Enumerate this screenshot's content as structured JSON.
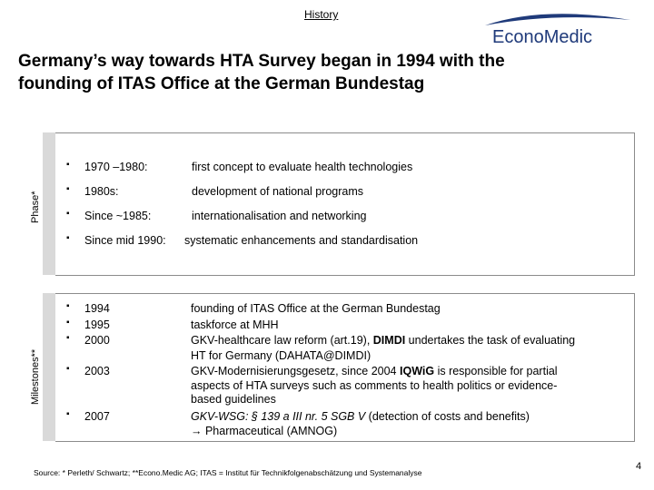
{
  "header": {
    "section": "History",
    "logo_text": "EconoMedic"
  },
  "title": {
    "line1": "Germany’s way towards HTA Survey began in 1994 with the",
    "line2": "founding of ITAS Office at the German Bundestag"
  },
  "phase": {
    "label": "Phase*",
    "items": [
      {
        "period": "1970 –1980:",
        "text": "first  concept to evaluate health technologies"
      },
      {
        "period": "1980s:",
        "text": "development of national programs"
      },
      {
        "period": "Since ~1985:",
        "text": "internationalisation and  networking"
      },
      {
        "period": "Since mid 1990:",
        "text": "systematic enhancements and standardisation"
      }
    ]
  },
  "milestones": {
    "label": "Milestones**",
    "years": [
      "1994",
      "1995",
      "2000",
      "2003",
      "2007"
    ],
    "bullet": "▪",
    "lines": {
      "l1": "founding of ITAS Office at the German Bundestag",
      "l2": "taskforce at MHH",
      "l3a": "GKV-healthcare law reform (art.19), ",
      "l3b": "DIMDI",
      "l3c": " undertakes the task of evaluating",
      "l4": "HT for Germany (DAHATA@DIMDI)",
      "l5a": "GKV-Modernisierungsgesetz, since 2004 ",
      "l5b": "IQWiG",
      "l5c": " is responsible for partial",
      "l6": "aspects of HTA surveys such as comments to health politics or evidence-",
      "l7": "based guidelines",
      "l8a": "GKV-WSG: § 139 a III nr. 5 SGB V",
      "l8b": " (detection of costs and benefits)",
      "l9": "→ Pharmaceutical (AMNOG)"
    }
  },
  "footer": {
    "source": "Source: * Perleth/ Schwartz; **Econo.Medic AG;  ITAS =  Institut für Technikfolgenabschätzung und Systemanalyse",
    "page": "4"
  },
  "colors": {
    "logo_blue": "#1f3a7a",
    "bar_gray": "#d9d9d9",
    "border_gray": "#8b8b8b"
  }
}
